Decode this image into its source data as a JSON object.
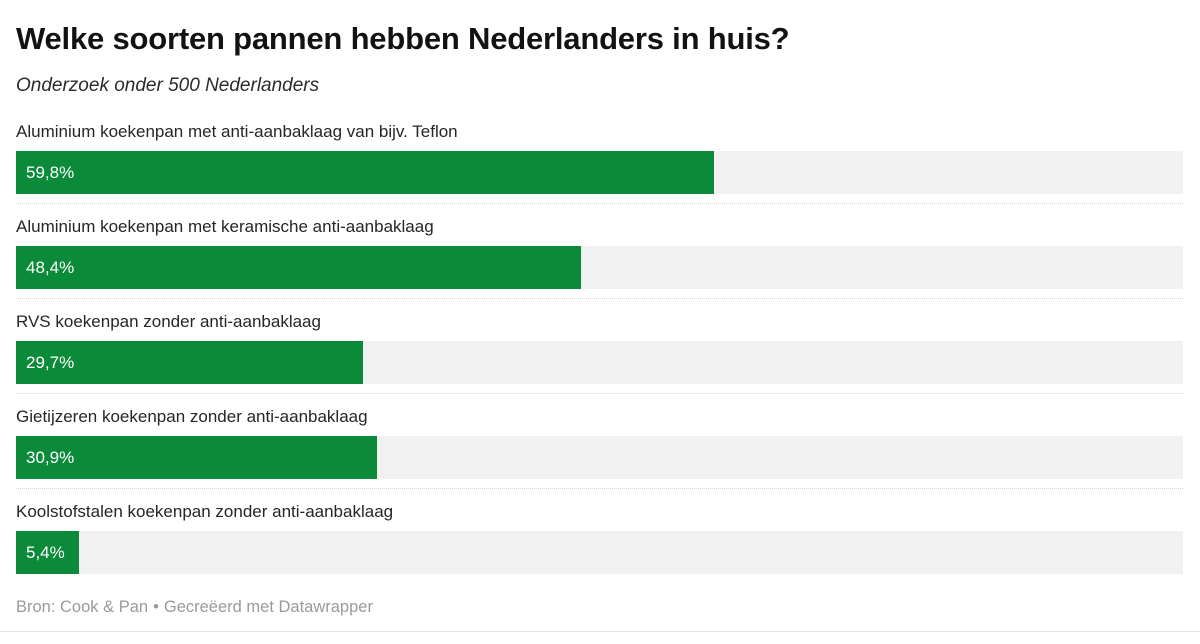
{
  "header": {
    "title": "Welke soorten pannen hebben Nederlanders in huis?",
    "subtitle": "Onderzoek onder 500 Nederlanders"
  },
  "footer": {
    "source": "Bron: Cook & Pan",
    "separator": "•",
    "credit": "Gecreëerd met Datawrapper"
  },
  "colors": {
    "bar": "#0b8a3a",
    "track": "#f1f1f1",
    "title": "#121212",
    "label": "#262626",
    "footer_text": "#9a9a9a",
    "separator": "#d4d4d4"
  },
  "chart_data": {
    "type": "bar",
    "orientation": "horizontal",
    "title": "Welke soorten pannen hebben Nederlanders in huis?",
    "subtitle": "Onderzoek onder 500 Nederlanders",
    "source": "Cook & Pan",
    "xlim": [
      0,
      100
    ],
    "unit": "%",
    "decimal_separator": ",",
    "grid": false,
    "legend": "none",
    "value_label_position": "inside-left",
    "categories": [
      "Aluminium koekenpan met anti-aanbaklaag van bijv. Teflon",
      "Aluminium koekenpan met keramische anti-aanbaklaag",
      "RVS koekenpan zonder anti-aanbaklaag",
      "Gietijzeren koekenpan zonder anti-aanbaklaag",
      "Koolstofstalen koekenpan zonder anti-aanbaklaag"
    ],
    "values": [
      59.8,
      48.4,
      29.7,
      30.9,
      5.4
    ],
    "value_labels": [
      "59,8%",
      "48,4%",
      "29,7%",
      "30,9%",
      "5,4%"
    ]
  }
}
